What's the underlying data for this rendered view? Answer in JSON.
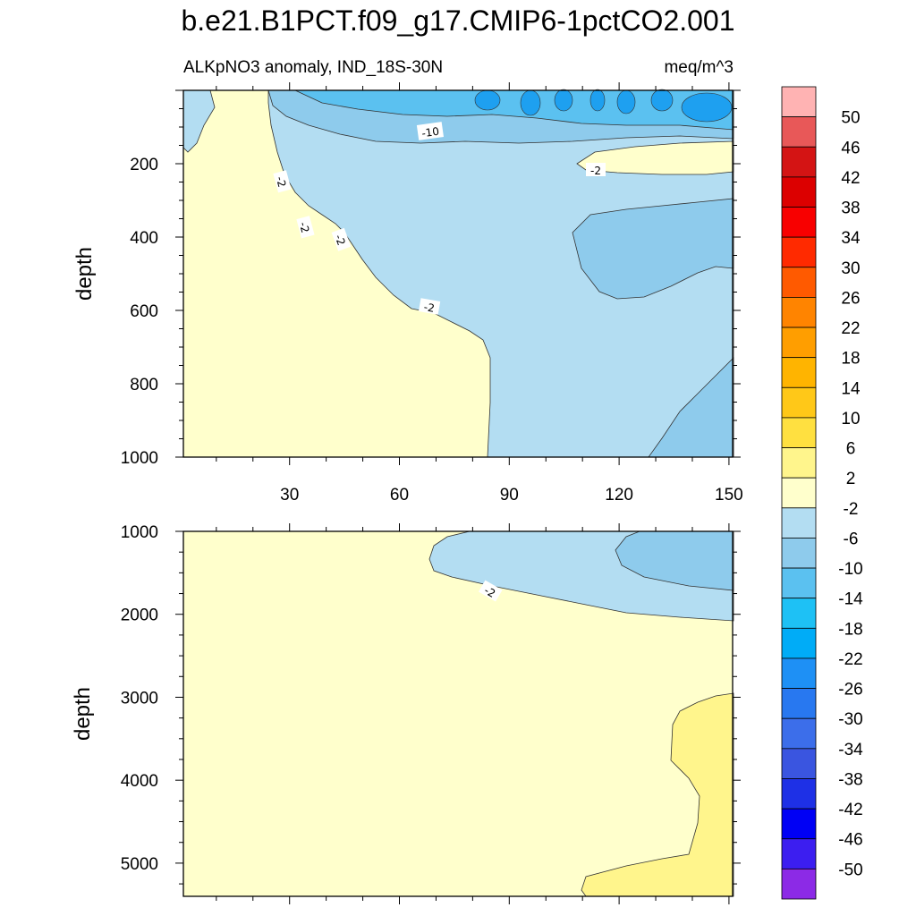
{
  "title": "b.e21.B1PCT.f09_g17.CMIP6-1pctCO2.001",
  "subtitle_left": "ALKpNO3 anomaly, IND_18S-30N",
  "subtitle_right": "meq/m^3",
  "colorbar": {
    "labels": [
      "50",
      "46",
      "42",
      "38",
      "34",
      "30",
      "26",
      "22",
      "18",
      "14",
      "10",
      "6",
      "2",
      "-2",
      "-6",
      "-10",
      "-14",
      "-18",
      "-22",
      "-26",
      "-30",
      "-34",
      "-38",
      "-42",
      "-46",
      "-50"
    ],
    "colors": [
      "#ffb3b3",
      "#e85858",
      "#d41414",
      "#dc0000",
      "#f80000",
      "#ff2a00",
      "#ff5a00",
      "#ff8400",
      "#ff9e00",
      "#ffb400",
      "#ffc818",
      "#ffe040",
      "#fff58c",
      "#ffffcc",
      "#b3ddf2",
      "#8ecbec",
      "#5bc1f0",
      "#1ec1f5",
      "#00acf7",
      "#1e90f5",
      "#2878f0",
      "#3c6eea",
      "#3a55e0",
      "#1e30e6",
      "#0000f5",
      "#3c1ef0",
      "#8c2ae6"
    ]
  },
  "chart_data": [
    {
      "type": "heatmap",
      "panel": "upper",
      "ylabel": "depth",
      "xlim": [
        1,
        151
      ],
      "ylim": [
        1000,
        0
      ],
      "xticks": [
        "30",
        "60",
        "90",
        "120",
        "150"
      ],
      "yticks": [
        "200",
        "400",
        "600",
        "800",
        "1000"
      ],
      "contour_labels": [
        "-10",
        "-2",
        "-2",
        "-2",
        "-2",
        "-2"
      ],
      "regions": [
        {
          "level": "-2 to 2",
          "color": "#ffffcc",
          "area": "western and deep water west of x=85"
        },
        {
          "level": "-6 to -2",
          "color": "#b3ddf2",
          "area": "upper layer east of x~25 and below 100 m east of x~85"
        },
        {
          "level": "-10 to -6",
          "color": "#8ecbec",
          "area": "near-surface band, tongue at x 105-150 depth 300-600, deep east x 130-150"
        },
        {
          "level": "-14 to -10",
          "color": "#5bc1f0",
          "area": "surface 0-90 m east of x~60"
        },
        {
          "level": "-30 to -14",
          "color": "#1ea0f0",
          "area": "surface cells 0-60 m"
        },
        {
          "level": "-2 to 2",
          "color": "#ffffcc",
          "area": "band x 108-150 depth 180-230"
        }
      ]
    },
    {
      "type": "heatmap",
      "panel": "lower",
      "ylabel": "depth",
      "xlim": [
        1,
        151
      ],
      "ylim": [
        5400,
        1000
      ],
      "yticks": [
        "1000",
        "2000",
        "3000",
        "4000",
        "5000"
      ],
      "contour_labels": [
        "-2"
      ],
      "regions": [
        {
          "level": "-2 to 2",
          "color": "#ffffcc",
          "area": "most of the section"
        },
        {
          "level": "-6 to -2",
          "color": "#b3ddf2",
          "area": "x 68-151 depth 1000-2050"
        },
        {
          "level": "-10 to -6",
          "color": "#8ecbec",
          "area": "x 120-151 depth 1000-1600"
        },
        {
          "level": "2 to 6",
          "color": "#fff58c",
          "area": "x 112-151 depth 2950-5400"
        }
      ]
    }
  ]
}
